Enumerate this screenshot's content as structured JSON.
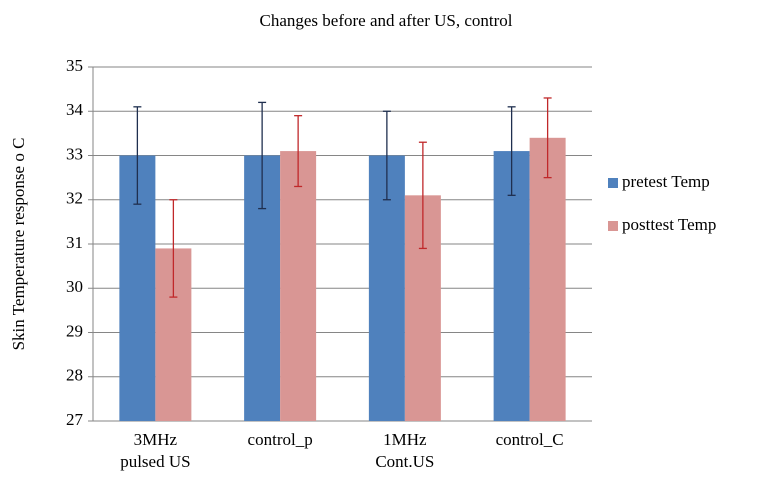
{
  "chart_data": {
    "type": "bar",
    "title": "Changes before and after US, control",
    "ylabel": "Skin Temperature response o C",
    "categories": [
      "3MHz pulsed US",
      "control_p",
      "1MHz Cont.US",
      "control_C"
    ],
    "series": [
      {
        "name": "pretest Temp",
        "color": "#4f81bd",
        "error_color": "#1f2f4f",
        "values": [
          33.0,
          33.0,
          33.0,
          33.1
        ],
        "errors": [
          1.1,
          1.2,
          1.0,
          1.0
        ]
      },
      {
        "name": "posttest Temp",
        "color": "#d99694",
        "error_color": "#c0282a",
        "values": [
          30.9,
          33.1,
          32.1,
          33.4
        ],
        "errors": [
          1.1,
          0.8,
          1.2,
          0.9
        ]
      }
    ],
    "ylim": [
      27,
      35
    ],
    "yticks": [
      27,
      28,
      29,
      30,
      31,
      32,
      33,
      34,
      35
    ],
    "grid": true,
    "legend": "right"
  }
}
